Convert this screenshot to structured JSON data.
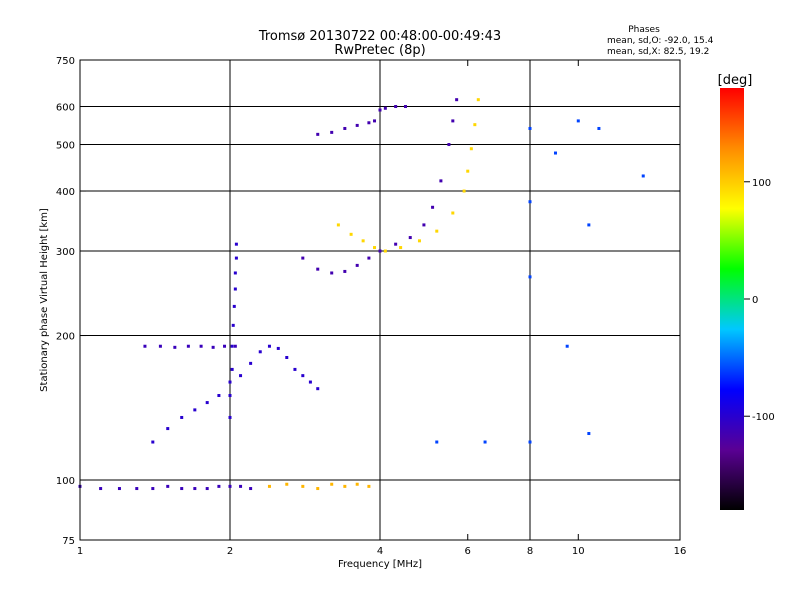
{
  "chart_data": {
    "type": "scatter",
    "title": "Tromsø 20130722 00:48:00-00:49:43",
    "subtitle": "RwPretec (8p)",
    "stats": {
      "heading": "Phases",
      "line_o": "mean, sd,O:  -92.0, 15.4",
      "line_x": "mean, sd,X:  82.5, 19.2"
    },
    "xlabel": "Frequency [MHz]",
    "ylabel": "Stationary phase Virtual Height [km]",
    "x_scale": "log",
    "y_scale": "log",
    "xlim": [
      1,
      16
    ],
    "ylim": [
      75,
      750
    ],
    "x_ticks": [
      {
        "value": 1,
        "label": "1"
      },
      {
        "value": 2,
        "label": "2"
      },
      {
        "value": 4,
        "label": "4"
      },
      {
        "value": 6,
        "label": "6"
      },
      {
        "value": 8,
        "label": "8"
      },
      {
        "value": 10,
        "label": "10"
      },
      {
        "value": 16,
        "label": "16"
      }
    ],
    "x_major_grid": [
      2,
      4,
      8,
      16
    ],
    "y_ticks": [
      {
        "value": 75,
        "label": "75"
      },
      {
        "value": 100,
        "label": "100"
      },
      {
        "value": 200,
        "label": "200"
      },
      {
        "value": 300,
        "label": "300"
      },
      {
        "value": 400,
        "label": "400"
      },
      {
        "value": 500,
        "label": "500"
      },
      {
        "value": 600,
        "label": "600"
      },
      {
        "value": 750,
        "label": "750"
      }
    ],
    "y_grid": [
      100,
      200,
      300,
      400,
      500,
      600
    ],
    "grid": true,
    "colorbar": {
      "label": "[deg]",
      "range": [
        -180,
        180
      ],
      "ticks": [
        {
          "value": 100,
          "label": "100"
        },
        {
          "value": 0,
          "label": "0"
        },
        {
          "value": -100,
          "label": "-100"
        }
      ],
      "stops": [
        "#000000",
        "#5a0094",
        "#0000ff",
        "#00c8ff",
        "#00ff00",
        "#ffff00",
        "#ff8c00",
        "#ff0000"
      ]
    },
    "series": [
      {
        "trace": "E-region trace near 97 km",
        "color_value": -110,
        "points": [
          [
            1.0,
            97
          ],
          [
            1.1,
            96
          ],
          [
            1.2,
            96
          ],
          [
            1.3,
            96
          ],
          [
            1.4,
            96
          ],
          [
            1.5,
            97
          ],
          [
            1.6,
            96
          ],
          [
            1.7,
            96
          ],
          [
            1.8,
            96
          ],
          [
            1.9,
            97
          ],
          [
            2.0,
            97
          ],
          [
            2.1,
            97
          ],
          [
            2.2,
            96
          ]
        ]
      },
      {
        "trace": "E-region trace, mixed phase",
        "color_value": 110,
        "points": [
          [
            2.4,
            97
          ],
          [
            2.6,
            98
          ],
          [
            2.8,
            97
          ],
          [
            3.0,
            96
          ],
          [
            3.2,
            98
          ],
          [
            3.4,
            97
          ],
          [
            3.6,
            98
          ],
          [
            3.8,
            97
          ]
        ]
      },
      {
        "trace": "Es-like trace near 190 km",
        "color_value": -110,
        "points": [
          [
            1.35,
            190
          ],
          [
            1.45,
            190
          ],
          [
            1.55,
            189
          ],
          [
            1.65,
            190
          ],
          [
            1.75,
            190
          ],
          [
            1.85,
            189
          ],
          [
            1.95,
            190
          ],
          [
            2.05,
            190
          ]
        ]
      },
      {
        "trace": "rising F1 segments",
        "color_value": -100,
        "points": [
          [
            1.4,
            120
          ],
          [
            1.5,
            128
          ],
          [
            1.6,
            135
          ],
          [
            1.7,
            140
          ],
          [
            1.8,
            145
          ],
          [
            1.9,
            150
          ],
          [
            2.0,
            160
          ],
          [
            2.1,
            165
          ],
          [
            2.2,
            175
          ],
          [
            2.3,
            185
          ],
          [
            2.4,
            190
          ],
          [
            2.5,
            188
          ],
          [
            2.6,
            180
          ],
          [
            2.7,
            170
          ],
          [
            2.8,
            165
          ],
          [
            2.9,
            160
          ],
          [
            3.0,
            155
          ]
        ]
      },
      {
        "trace": "vertical cusp at 2 MHz",
        "color_value": -100,
        "points": [
          [
            2.0,
            135
          ],
          [
            2.0,
            150
          ],
          [
            2.02,
            170
          ],
          [
            2.02,
            190
          ],
          [
            2.03,
            210
          ],
          [
            2.04,
            230
          ],
          [
            2.05,
            250
          ],
          [
            2.05,
            270
          ],
          [
            2.06,
            290
          ],
          [
            2.06,
            310
          ]
        ]
      },
      {
        "trace": "F2 O-mode trace",
        "color_value": -115,
        "points": [
          [
            2.8,
            290
          ],
          [
            3.0,
            275
          ],
          [
            3.2,
            270
          ],
          [
            3.4,
            272
          ],
          [
            3.6,
            280
          ],
          [
            3.8,
            290
          ],
          [
            4.0,
            300
          ],
          [
            4.3,
            310
          ],
          [
            4.6,
            320
          ],
          [
            4.9,
            340
          ],
          [
            5.1,
            370
          ],
          [
            5.3,
            420
          ],
          [
            5.5,
            500
          ],
          [
            5.6,
            560
          ],
          [
            5.7,
            620
          ]
        ]
      },
      {
        "trace": "F2 X-mode trace",
        "color_value": 95,
        "points": [
          [
            3.3,
            340
          ],
          [
            3.5,
            325
          ],
          [
            3.7,
            315
          ],
          [
            3.9,
            305
          ],
          [
            4.1,
            300
          ],
          [
            4.4,
            305
          ],
          [
            4.8,
            315
          ],
          [
            5.2,
            330
          ],
          [
            5.6,
            360
          ],
          [
            5.9,
            400
          ],
          [
            6.0,
            440
          ],
          [
            6.1,
            490
          ],
          [
            6.2,
            550
          ],
          [
            6.3,
            620
          ]
        ]
      },
      {
        "trace": "upper O-mode echo",
        "color_value": -115,
        "points": [
          [
            3.0,
            525
          ],
          [
            3.2,
            530
          ],
          [
            3.4,
            540
          ],
          [
            3.6,
            548
          ],
          [
            3.8,
            555
          ],
          [
            3.9,
            560
          ],
          [
            4.0,
            590
          ],
          [
            4.1,
            595
          ],
          [
            4.3,
            600
          ],
          [
            4.5,
            600
          ]
        ]
      },
      {
        "trace": "scattered echoes",
        "color_value": -60,
        "points": [
          [
            8.0,
            540
          ],
          [
            8.0,
            380
          ],
          [
            8.0,
            265
          ],
          [
            8.0,
            120
          ],
          [
            9.0,
            480
          ],
          [
            9.5,
            190
          ],
          [
            10.0,
            560
          ],
          [
            10.5,
            340
          ],
          [
            10.5,
            125
          ],
          [
            11.0,
            540
          ],
          [
            13.5,
            430
          ],
          [
            5.2,
            120
          ],
          [
            6.5,
            120
          ]
        ]
      }
    ]
  }
}
